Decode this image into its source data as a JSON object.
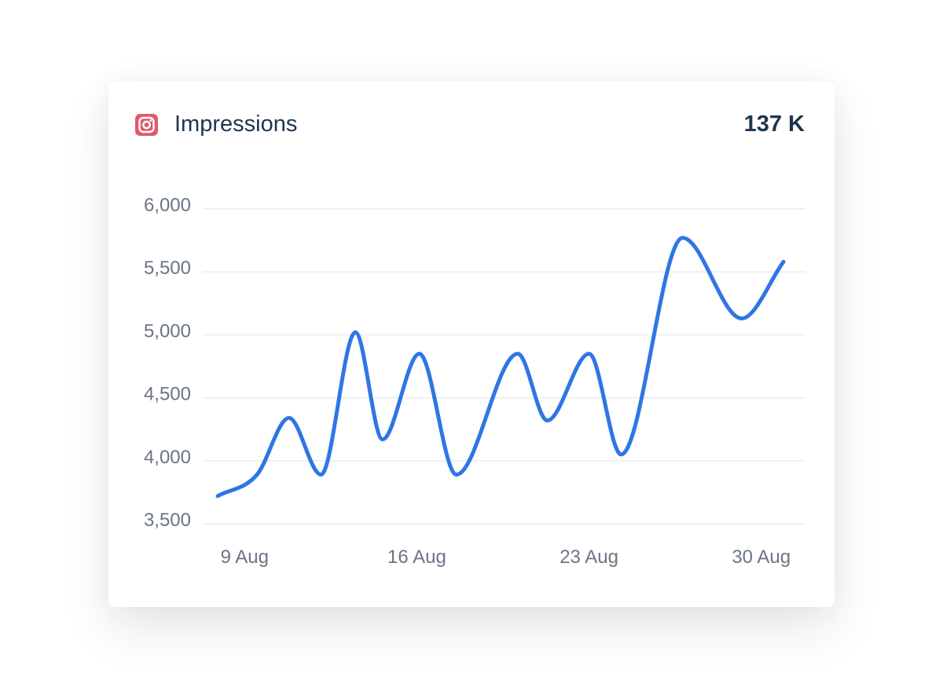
{
  "widget": {
    "title": "Impressions",
    "total": "137 K",
    "icon": "instagram-icon",
    "icon_color": "#e05a6e"
  },
  "chart_data": {
    "type": "line",
    "title": "",
    "xlabel": "",
    "ylabel": "",
    "x_unit": "day of August",
    "x": [
      8,
      9.6,
      10.9,
      12.2,
      13.6,
      14.7,
      16.2,
      17.7,
      20.2,
      21.4,
      23.1,
      24.4,
      26.9,
      29.3,
      31
    ],
    "values": [
      3720,
      3890,
      4340,
      3890,
      5020,
      4170,
      4850,
      3890,
      4850,
      4320,
      4850,
      4050,
      5770,
      5130,
      5580
    ],
    "ylim": [
      3500,
      6000
    ],
    "yticks": [
      3500,
      4000,
      4500,
      5000,
      5500,
      6000
    ],
    "ytick_labels": [
      "3,500",
      "4,000",
      "4,500",
      "5,000",
      "5,500",
      "6,000"
    ],
    "xticks": [
      9,
      16,
      23,
      30
    ],
    "xtick_labels": [
      "9 Aug",
      "16 Aug",
      "23 Aug",
      "30 Aug"
    ],
    "xlim": [
      8,
      31
    ],
    "grid": true,
    "line_color": "#2f76e4",
    "smooth": true
  }
}
